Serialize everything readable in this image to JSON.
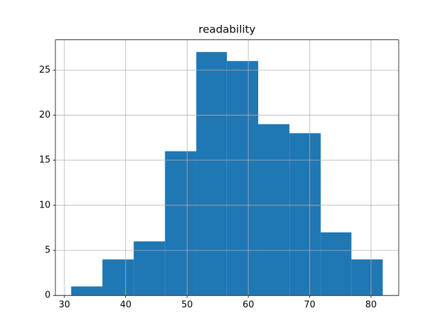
{
  "chart_data": {
    "type": "histogram",
    "title": "readability",
    "bins": [
      31.1,
      36.2,
      41.3,
      46.4,
      51.5,
      56.5,
      61.6,
      66.7,
      71.8,
      76.8,
      81.9
    ],
    "values": [
      1,
      4,
      6,
      16,
      27,
      26,
      19,
      18,
      7,
      4
    ],
    "color": "#1f77b4",
    "xlim": [
      28.53,
      84.51
    ],
    "xticks": [
      30,
      40,
      50,
      60,
      70,
      80
    ],
    "ylim": [
      0,
      28.35
    ],
    "yticks": [
      0,
      5,
      10,
      15,
      20,
      25
    ],
    "grid": true
  }
}
